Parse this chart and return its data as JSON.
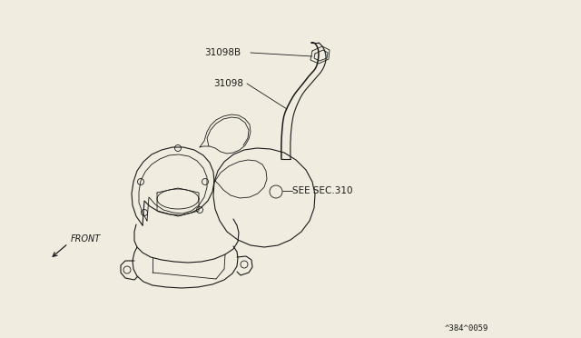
{
  "background_color": "#f0ece0",
  "line_color": "#1a1a1a",
  "text_color": "#1a1a1a",
  "label_31098B": "31098B",
  "label_31098": "31098",
  "label_see": "SEE SEC.310",
  "label_front": "FRONT",
  "label_part_num": "^384^0059",
  "figsize": [
    6.4,
    3.72
  ],
  "dpi": 100,
  "lw_main": 0.8,
  "lw_thin": 0.6,
  "fontsize_label": 7.5,
  "fontsize_partnum": 6.5
}
